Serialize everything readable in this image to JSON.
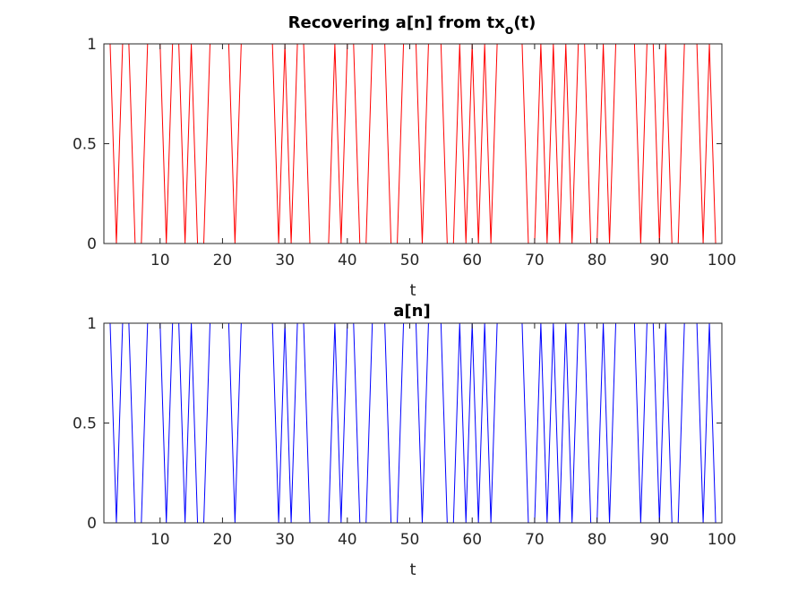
{
  "chart_data": [
    {
      "type": "line",
      "title_main": "Recovering a[n] from tx",
      "title_sub": "o",
      "title_tail": "(t)",
      "xlabel": "t",
      "ylabel": "",
      "xlim": [
        1,
        100
      ],
      "ylim": [
        0,
        1
      ],
      "xticks": [
        10,
        20,
        30,
        40,
        50,
        60,
        70,
        80,
        90,
        100
      ],
      "yticks": [
        0,
        0.5,
        1
      ],
      "xtick_labels": [
        "10",
        "20",
        "30",
        "40",
        "50",
        "60",
        "70",
        "80",
        "90",
        "100"
      ],
      "ytick_labels": [
        "0",
        "0.5",
        "1"
      ],
      "grid": false,
      "color": "#ff0000",
      "x_start": 1,
      "values": [
        1,
        1,
        0,
        1,
        1,
        0,
        0,
        1,
        1,
        1,
        0,
        1,
        1,
        0,
        1,
        0,
        0,
        1,
        1,
        1,
        1,
        0,
        1,
        1,
        1,
        1,
        1,
        1,
        0,
        1,
        0,
        1,
        1,
        0,
        0,
        0,
        0,
        1,
        0,
        1,
        1,
        0,
        0,
        1,
        1,
        1,
        0,
        0,
        1,
        1,
        1,
        0,
        1,
        1,
        1,
        0,
        0,
        1,
        0,
        1,
        0,
        1,
        0,
        1,
        1,
        1,
        1,
        1,
        0,
        0,
        1,
        0,
        1,
        0,
        1,
        0,
        1,
        1,
        0,
        0,
        1,
        0,
        1,
        1,
        1,
        1,
        0,
        1,
        1,
        0,
        1,
        0,
        0,
        1,
        1,
        1,
        0,
        1,
        0,
        0
      ]
    },
    {
      "type": "line",
      "title_main": "a[n]",
      "title_sub": "",
      "title_tail": "",
      "xlabel": "t",
      "ylabel": "",
      "xlim": [
        1,
        100
      ],
      "ylim": [
        0,
        1
      ],
      "xticks": [
        10,
        20,
        30,
        40,
        50,
        60,
        70,
        80,
        90,
        100
      ],
      "yticks": [
        0,
        0.5,
        1
      ],
      "xtick_labels": [
        "10",
        "20",
        "30",
        "40",
        "50",
        "60",
        "70",
        "80",
        "90",
        "100"
      ],
      "ytick_labels": [
        "0",
        "0.5",
        "1"
      ],
      "grid": false,
      "color": "#0000ff",
      "x_start": 1,
      "values": [
        1,
        1,
        0,
        1,
        1,
        0,
        0,
        1,
        1,
        1,
        0,
        1,
        1,
        0,
        1,
        0,
        0,
        1,
        1,
        1,
        1,
        0,
        1,
        1,
        1,
        1,
        1,
        1,
        0,
        1,
        0,
        1,
        1,
        0,
        0,
        0,
        0,
        1,
        0,
        1,
        1,
        0,
        0,
        1,
        1,
        1,
        0,
        0,
        1,
        1,
        1,
        0,
        1,
        1,
        1,
        0,
        0,
        1,
        0,
        1,
        0,
        1,
        0,
        1,
        1,
        1,
        1,
        1,
        0,
        0,
        1,
        0,
        1,
        0,
        1,
        0,
        1,
        1,
        0,
        0,
        1,
        0,
        1,
        1,
        1,
        1,
        0,
        1,
        1,
        0,
        1,
        0,
        0,
        1,
        1,
        1,
        0,
        1,
        0,
        0
      ]
    }
  ]
}
